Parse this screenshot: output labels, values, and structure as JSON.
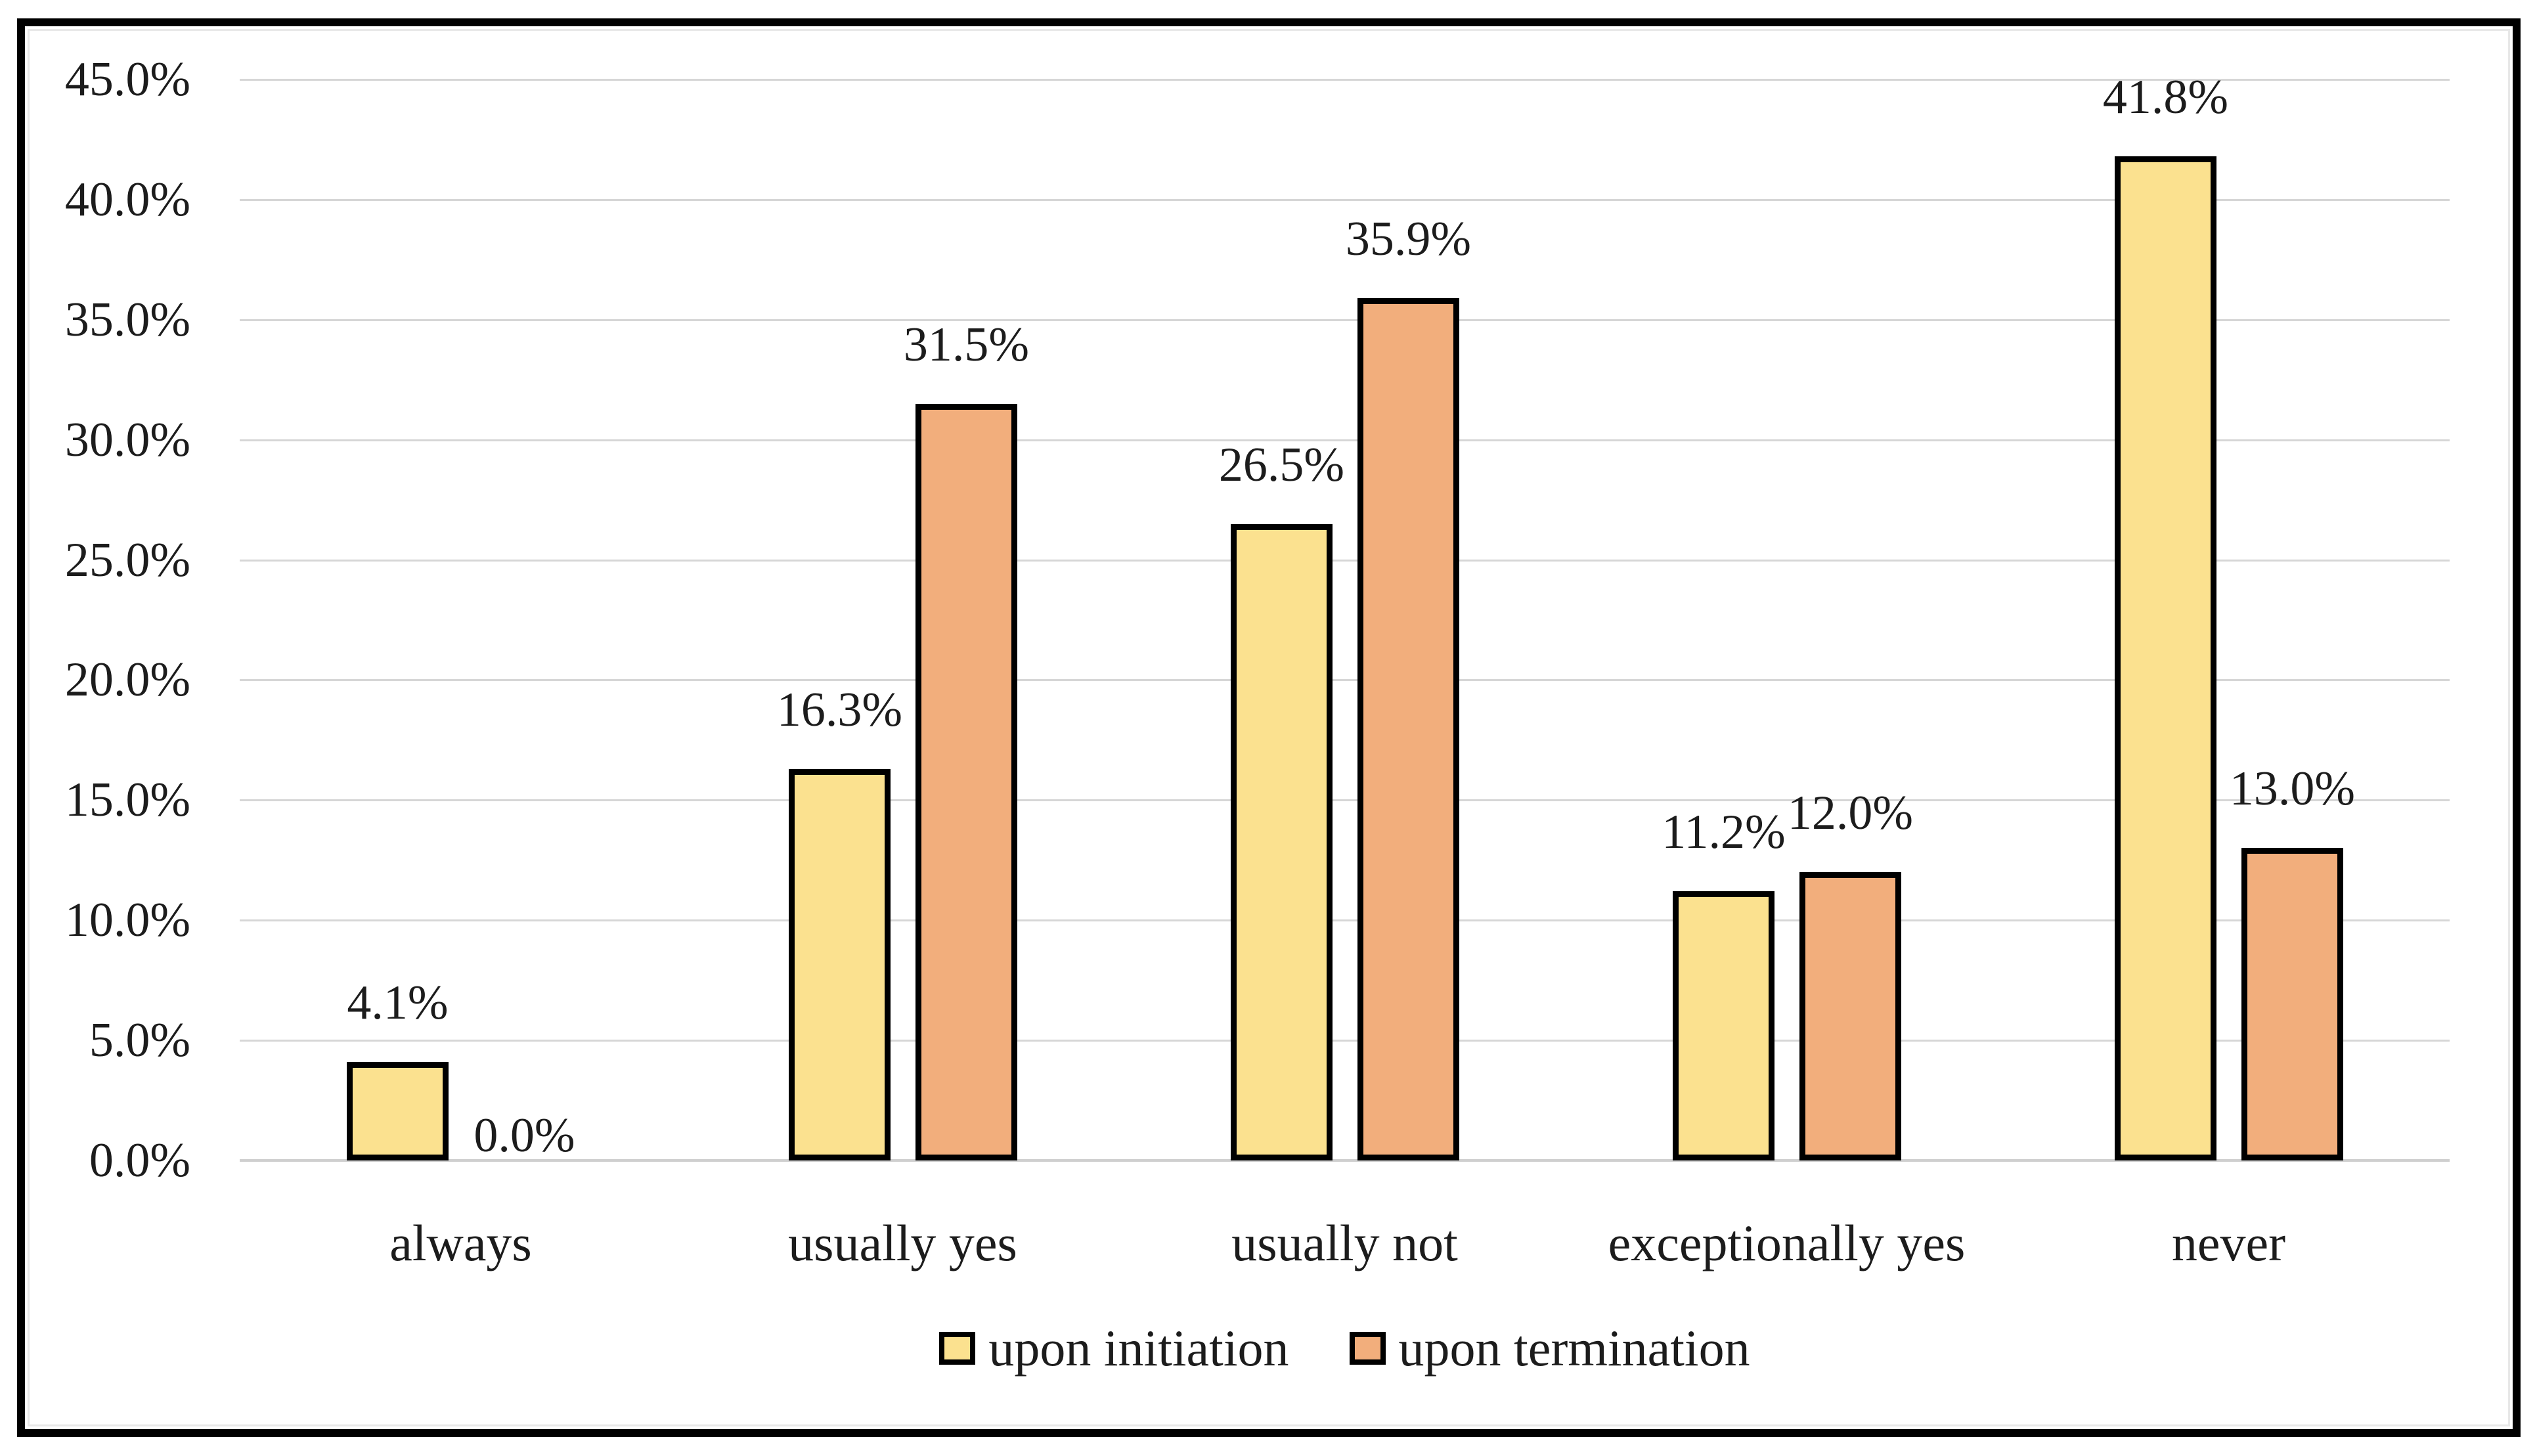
{
  "chart_data": {
    "type": "bar",
    "title": "",
    "xlabel": "",
    "ylabel": "",
    "categories": [
      "always",
      "usually yes",
      "usually not",
      "exceptionally yes",
      "never"
    ],
    "series": [
      {
        "name": "upon initiation",
        "color": "#FBE18F",
        "values": [
          4.1,
          16.3,
          26.5,
          11.2,
          41.8
        ],
        "labels": [
          "4.1%",
          "16.3%",
          "26.5%",
          "11.2%",
          "41.8%"
        ]
      },
      {
        "name": "upon termination",
        "color": "#F2AE7C",
        "values": [
          0.0,
          31.5,
          35.9,
          12.0,
          13.0
        ],
        "labels": [
          "0.0%",
          "31.5%",
          "35.9%",
          "12.0%",
          "13.0%"
        ]
      }
    ],
    "ylim": [
      0,
      45
    ],
    "ytick_step": 5,
    "yticks": [
      {
        "value": 45,
        "label": "45.0%"
      },
      {
        "value": 40,
        "label": "40.0%"
      },
      {
        "value": 35,
        "label": "35.0%"
      },
      {
        "value": 30,
        "label": "30.0%"
      },
      {
        "value": 25,
        "label": "25.0%"
      },
      {
        "value": 20,
        "label": "20.0%"
      },
      {
        "value": 15,
        "label": "15.0%"
      },
      {
        "value": 10,
        "label": "10.0%"
      },
      {
        "value": 5,
        "label": "5.0%"
      },
      {
        "value": 0,
        "label": "0.0%"
      }
    ],
    "grid": true,
    "legend_position": "bottom"
  },
  "style": {
    "series_fill_initiation": "#FBE18F",
    "series_fill_termination": "#F2AE7C",
    "bar_border_color": "#000000",
    "grid_color": "#D6D6D6",
    "axis_line_color": "#CFCFCF",
    "text_color": "#1C1C1C",
    "frame_color": "#000000",
    "background": "#FFFFFF"
  }
}
